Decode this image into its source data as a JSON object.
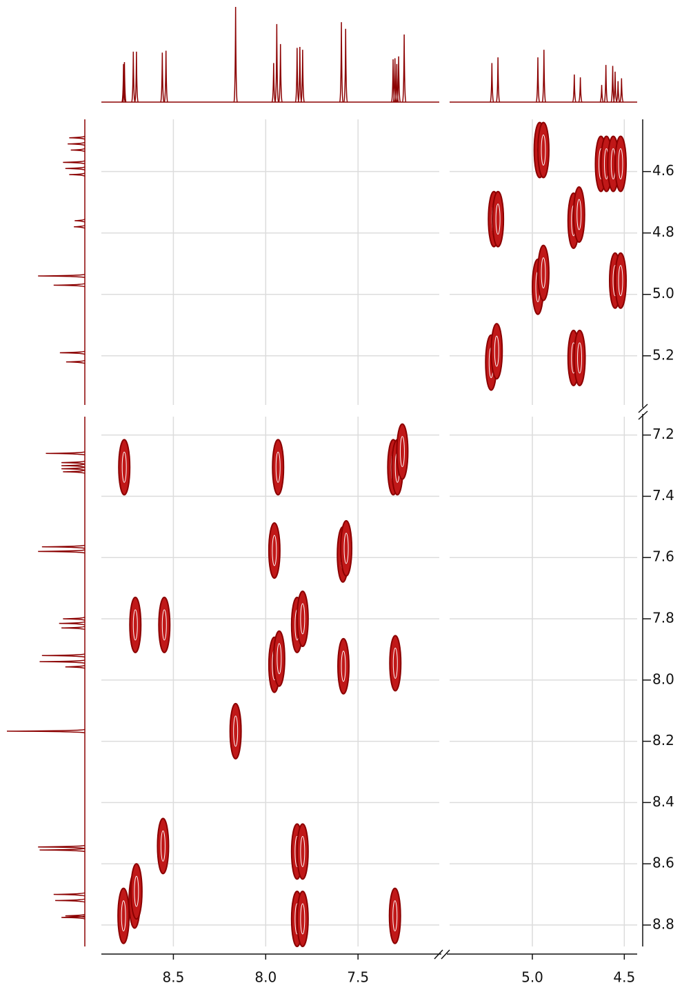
{
  "chart_data": {
    "type": "cosy",
    "color": "#8b0000",
    "grid": true,
    "xlim": [
      [
        8.89,
        7.06
      ],
      [
        5.45,
        4.43
      ]
    ],
    "ylim": [
      [
        4.43,
        5.36
      ],
      [
        7.14,
        8.87
      ]
    ],
    "xticks": [
      8.5,
      {
        "value": 8.0,
        "label": "8.0"
      },
      7.5,
      {
        "value": 5.0,
        "label": "5.0"
      },
      4.5
    ],
    "yticks": [
      4.6,
      4.8,
      {
        "value": 5.0,
        "label": "5.0"
      },
      5.2,
      7.2,
      7.4,
      7.6,
      7.8,
      {
        "value": 8.0,
        "label": "8.0"
      },
      8.2,
      8.4,
      8.6,
      8.8
    ],
    "peaks": {
      "x": [
        4.96,
        4.94,
        4.627,
        4.597,
        4.56,
        4.52,
        5.209,
        5.187,
        4.776,
        4.746,
        4.97,
        4.94,
        4.55,
        4.52,
        5.224,
        5.194,
        4.776,
        4.743,
        8.766,
        7.933,
        7.309,
        7.287,
        7.26,
        7.953,
        7.582,
        7.564,
        8.706,
        8.549,
        7.83,
        7.8,
        7.953,
        7.927,
        7.579,
        7.298,
        8.163,
        8.556,
        7.83,
        7.8,
        7.83,
        7.8,
        8.71,
        8.7,
        8.77,
        7.3
      ],
      "y": [
        4.53,
        4.53,
        4.575,
        4.575,
        4.575,
        4.575,
        4.755,
        4.755,
        4.76,
        4.74,
        4.975,
        4.93,
        4.955,
        4.955,
        5.222,
        5.185,
        5.207,
        5.207,
        7.305,
        7.305,
        7.305,
        7.305,
        7.254,
        7.577,
        7.59,
        7.57,
        7.82,
        7.82,
        7.82,
        7.8,
        7.95,
        7.93,
        7.955,
        7.945,
        8.167,
        8.542,
        8.56,
        8.56,
        8.78,
        8.78,
        8.72,
        8.69,
        8.77,
        8.77
      ]
    },
    "top_projection": {
      "x": [
        8.77,
        8.765,
        8.717,
        8.7,
        8.56,
        8.54,
        8.163,
        7.957,
        7.94,
        7.92,
        7.83,
        7.815,
        7.8,
        7.59,
        7.567,
        7.31,
        7.3,
        7.29,
        7.28,
        7.25,
        5.22,
        5.187,
        4.97,
        4.937,
        4.772,
        4.739,
        4.623,
        4.6,
        4.563,
        4.55,
        4.534,
        4.515
      ],
      "values": [
        40,
        42,
        53,
        53,
        52,
        54,
        100,
        41,
        82,
        61,
        57,
        58,
        55,
        84,
        77,
        45,
        46,
        40,
        48,
        71,
        41,
        47,
        47,
        55,
        29,
        26,
        18,
        39,
        38,
        32,
        22,
        25
      ]
    },
    "left_projection": {
      "y": [
        4.49,
        4.51,
        4.53,
        4.57,
        4.59,
        4.61,
        4.76,
        4.78,
        4.94,
        4.97,
        5.19,
        5.22,
        7.26,
        7.29,
        7.3,
        7.31,
        7.32,
        7.565,
        7.58,
        7.8,
        7.815,
        7.83,
        7.92,
        7.94,
        7.957,
        8.167,
        8.545,
        8.555,
        8.7,
        8.72,
        8.77,
        8.775
      ],
      "values": [
        20,
        22,
        18,
        28,
        25,
        20,
        13,
        14,
        60,
        40,
        32,
        24,
        50,
        30,
        30,
        30,
        28,
        55,
        60,
        28,
        33,
        30,
        55,
        58,
        25,
        100,
        60,
        58,
        40,
        38,
        25,
        30
      ]
    }
  }
}
